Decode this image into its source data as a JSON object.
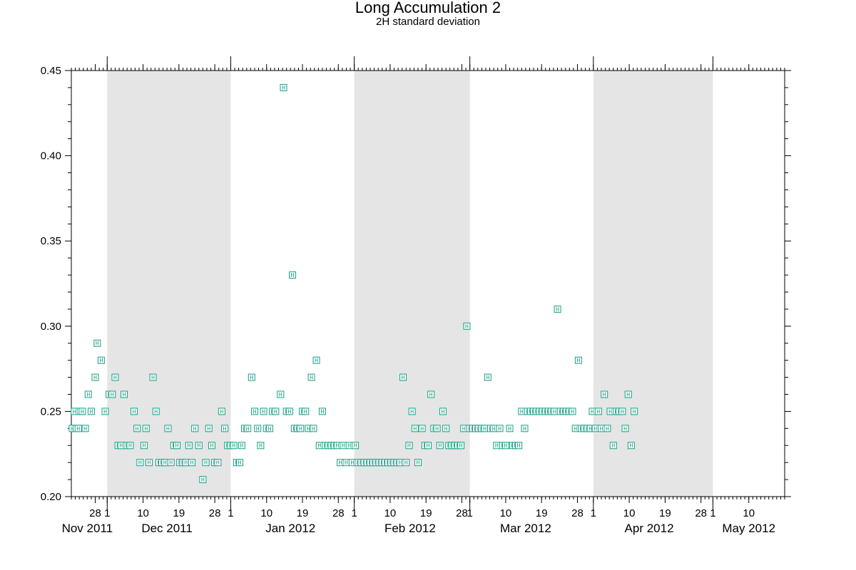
{
  "chart_data": {
    "type": "scatter",
    "title": "Long Accumulation 2",
    "subtitle": "2H standard deviation",
    "xlabel": "",
    "ylabel": "",
    "marker_symbol": "H",
    "marker_color": "#16a085",
    "shade_color": "#e5e5e5",
    "grid": false,
    "xlim": [
      "2011-11-22",
      "2012-05-19"
    ],
    "ylim": [
      0.2,
      0.45
    ],
    "y_ticks": [
      "0.20",
      "0.25",
      "0.30",
      "0.35",
      "0.40",
      "0.45"
    ],
    "shaded_months": [
      {
        "start": "2011-12-01",
        "end": "2012-01-01"
      },
      {
        "start": "2012-02-01",
        "end": "2012-03-01"
      },
      {
        "start": "2012-04-01",
        "end": "2012-05-01"
      }
    ],
    "x_day_ticks": [
      {
        "date": "2011-11-28",
        "label": "28"
      },
      {
        "date": "2011-12-01",
        "label": "1"
      },
      {
        "date": "2011-12-10",
        "label": "10"
      },
      {
        "date": "2011-12-19",
        "label": "19"
      },
      {
        "date": "2011-12-28",
        "label": "28"
      },
      {
        "date": "2012-01-01",
        "label": "1"
      },
      {
        "date": "2012-01-10",
        "label": "10"
      },
      {
        "date": "2012-01-19",
        "label": "19"
      },
      {
        "date": "2012-01-28",
        "label": "28"
      },
      {
        "date": "2012-02-01",
        "label": "1"
      },
      {
        "date": "2012-02-10",
        "label": "10"
      },
      {
        "date": "2012-02-19",
        "label": "19"
      },
      {
        "date": "2012-02-28",
        "label": "28"
      },
      {
        "date": "2012-03-01",
        "label": "1"
      },
      {
        "date": "2012-03-10",
        "label": "10"
      },
      {
        "date": "2012-03-19",
        "label": "19"
      },
      {
        "date": "2012-03-28",
        "label": "28"
      },
      {
        "date": "2012-04-01",
        "label": "1"
      },
      {
        "date": "2012-04-10",
        "label": "10"
      },
      {
        "date": "2012-04-19",
        "label": "19"
      },
      {
        "date": "2012-04-28",
        "label": "28"
      },
      {
        "date": "2012-05-01",
        "label": "1"
      },
      {
        "date": "2012-05-10",
        "label": "10"
      }
    ],
    "x_month_labels": [
      {
        "date": "2011-11-26",
        "label": "Nov 2011"
      },
      {
        "date": "2011-12-16",
        "label": "Dec 2011"
      },
      {
        "date": "2012-01-16",
        "label": "Jan 2012"
      },
      {
        "date": "2012-02-15",
        "label": "Feb 2012"
      },
      {
        "date": "2012-03-15",
        "label": "Mar 2012"
      },
      {
        "date": "2012-04-15",
        "label": "Apr 2012"
      },
      {
        "date": "2012-05-10",
        "label": "May 2012"
      }
    ],
    "series": [
      {
        "points": [
          {
            "x": "2011-11-22T06:00",
            "y": 0.24
          },
          {
            "x": "2011-11-22T18:00",
            "y": 0.25
          },
          {
            "x": "2011-11-23T06:00",
            "y": 0.24
          },
          {
            "x": "2011-11-23T18:00",
            "y": 0.24
          },
          {
            "x": "2011-11-24T06:00",
            "y": 0.25
          },
          {
            "x": "2011-11-24T18:00",
            "y": 0.25
          },
          {
            "x": "2011-11-25T12:00",
            "y": 0.24
          },
          {
            "x": "2011-11-26T06:00",
            "y": 0.26
          },
          {
            "x": "2011-11-27T00:00",
            "y": 0.25
          },
          {
            "x": "2011-11-28T00:00",
            "y": 0.27
          },
          {
            "x": "2011-11-28T12:00",
            "y": 0.29
          },
          {
            "x": "2011-11-29T12:00",
            "y": 0.28
          },
          {
            "x": "2011-11-30T12:00",
            "y": 0.25
          },
          {
            "x": "2011-12-01T12:00",
            "y": 0.26
          },
          {
            "x": "2011-12-02T06:00",
            "y": 0.26
          },
          {
            "x": "2011-12-03T00:00",
            "y": 0.27
          },
          {
            "x": "2011-12-03T18:00",
            "y": 0.23
          },
          {
            "x": "2011-12-04T12:00",
            "y": 0.23
          },
          {
            "x": "2011-12-05T06:00",
            "y": 0.26
          },
          {
            "x": "2011-12-06T00:00",
            "y": 0.23
          },
          {
            "x": "2011-12-06T18:00",
            "y": 0.23
          },
          {
            "x": "2011-12-07T18:00",
            "y": 0.25
          },
          {
            "x": "2011-12-08T12:00",
            "y": 0.24
          },
          {
            "x": "2011-12-09T06:00",
            "y": 0.22
          },
          {
            "x": "2011-12-10T06:00",
            "y": 0.23
          },
          {
            "x": "2011-12-10T18:00",
            "y": 0.24
          },
          {
            "x": "2011-12-11T12:00",
            "y": 0.22
          },
          {
            "x": "2011-12-12T12:00",
            "y": 0.27
          },
          {
            "x": "2011-12-13T06:00",
            "y": 0.25
          },
          {
            "x": "2011-12-14T00:00",
            "y": 0.22
          },
          {
            "x": "2011-12-14T18:00",
            "y": 0.22
          },
          {
            "x": "2011-12-15T12:00",
            "y": 0.22
          },
          {
            "x": "2011-12-16T06:00",
            "y": 0.24
          },
          {
            "x": "2011-12-17T00:00",
            "y": 0.22
          },
          {
            "x": "2011-12-17T18:00",
            "y": 0.23
          },
          {
            "x": "2011-12-18T12:00",
            "y": 0.23
          },
          {
            "x": "2011-12-19T06:00",
            "y": 0.22
          },
          {
            "x": "2011-12-20T00:00",
            "y": 0.22
          },
          {
            "x": "2011-12-20T18:00",
            "y": 0.22
          },
          {
            "x": "2011-12-21T12:00",
            "y": 0.23
          },
          {
            "x": "2011-12-22T06:00",
            "y": 0.22
          },
          {
            "x": "2011-12-23T00:00",
            "y": 0.24
          },
          {
            "x": "2011-12-24T00:00",
            "y": 0.23
          },
          {
            "x": "2011-12-25T00:00",
            "y": 0.21
          },
          {
            "x": "2011-12-25T18:00",
            "y": 0.22
          },
          {
            "x": "2011-12-26T12:00",
            "y": 0.24
          },
          {
            "x": "2011-12-27T06:00",
            "y": 0.23
          },
          {
            "x": "2011-12-28T00:00",
            "y": 0.22
          },
          {
            "x": "2011-12-28T18:00",
            "y": 0.22
          },
          {
            "x": "2011-12-29T18:00",
            "y": 0.25
          },
          {
            "x": "2011-12-30T12:00",
            "y": 0.24
          },
          {
            "x": "2011-12-31T06:00",
            "y": 0.23
          },
          {
            "x": "2012-01-01T00:00",
            "y": 0.23
          },
          {
            "x": "2012-01-01T18:00",
            "y": 0.23
          },
          {
            "x": "2012-01-02T12:00",
            "y": 0.22
          },
          {
            "x": "2012-01-03T06:00",
            "y": 0.22
          },
          {
            "x": "2012-01-03T18:00",
            "y": 0.23
          },
          {
            "x": "2012-01-04T12:00",
            "y": 0.24
          },
          {
            "x": "2012-01-05T06:00",
            "y": 0.24
          },
          {
            "x": "2012-01-06T06:00",
            "y": 0.27
          },
          {
            "x": "2012-01-07T00:00",
            "y": 0.25
          },
          {
            "x": "2012-01-07T18:00",
            "y": 0.24
          },
          {
            "x": "2012-01-08T12:00",
            "y": 0.23
          },
          {
            "x": "2012-01-09T06:00",
            "y": 0.25
          },
          {
            "x": "2012-01-10T00:00",
            "y": 0.24
          },
          {
            "x": "2012-01-10T18:00",
            "y": 0.24
          },
          {
            "x": "2012-01-11T12:00",
            "y": 0.25
          },
          {
            "x": "2012-01-12T06:00",
            "y": 0.25
          },
          {
            "x": "2012-01-13T12:00",
            "y": 0.26
          },
          {
            "x": "2012-01-14T06:00",
            "y": 0.44
          },
          {
            "x": "2012-01-15T00:00",
            "y": 0.25
          },
          {
            "x": "2012-01-15T18:00",
            "y": 0.25
          },
          {
            "x": "2012-01-16T12:00",
            "y": 0.33
          },
          {
            "x": "2012-01-17T00:00",
            "y": 0.24
          },
          {
            "x": "2012-01-17T18:00",
            "y": 0.24
          },
          {
            "x": "2012-01-18T12:00",
            "y": 0.24
          },
          {
            "x": "2012-01-19T00:00",
            "y": 0.25
          },
          {
            "x": "2012-01-19T18:00",
            "y": 0.25
          },
          {
            "x": "2012-01-20T12:00",
            "y": 0.24
          },
          {
            "x": "2012-01-21T06:00",
            "y": 0.27
          },
          {
            "x": "2012-01-21T18:00",
            "y": 0.24
          },
          {
            "x": "2012-01-22T12:00",
            "y": 0.28
          },
          {
            "x": "2012-01-23T06:00",
            "y": 0.23
          },
          {
            "x": "2012-01-24T00:00",
            "y": 0.25
          },
          {
            "x": "2012-01-24T18:00",
            "y": 0.23
          },
          {
            "x": "2012-01-25T12:00",
            "y": 0.23
          },
          {
            "x": "2012-01-26T06:00",
            "y": 0.23
          },
          {
            "x": "2012-01-27T00:00",
            "y": 0.23
          },
          {
            "x": "2012-01-27T18:00",
            "y": 0.23
          },
          {
            "x": "2012-01-28T12:00",
            "y": 0.22
          },
          {
            "x": "2012-01-29T06:00",
            "y": 0.23
          },
          {
            "x": "2012-01-30T00:00",
            "y": 0.22
          },
          {
            "x": "2012-01-30T18:00",
            "y": 0.23
          },
          {
            "x": "2012-01-31T12:00",
            "y": 0.22
          },
          {
            "x": "2012-02-01T06:00",
            "y": 0.23
          },
          {
            "x": "2012-02-02T00:00",
            "y": 0.22
          },
          {
            "x": "2012-02-02T18:00",
            "y": 0.22
          },
          {
            "x": "2012-02-03T12:00",
            "y": 0.22
          },
          {
            "x": "2012-02-04T06:00",
            "y": 0.22
          },
          {
            "x": "2012-02-05T00:00",
            "y": 0.22
          },
          {
            "x": "2012-02-05T18:00",
            "y": 0.22
          },
          {
            "x": "2012-02-06T12:00",
            "y": 0.22
          },
          {
            "x": "2012-02-07T06:00",
            "y": 0.22
          },
          {
            "x": "2012-02-08T00:00",
            "y": 0.22
          },
          {
            "x": "2012-02-08T18:00",
            "y": 0.22
          },
          {
            "x": "2012-02-09T12:00",
            "y": 0.22
          },
          {
            "x": "2012-02-10T06:00",
            "y": 0.22
          },
          {
            "x": "2012-02-11T00:00",
            "y": 0.22
          },
          {
            "x": "2012-02-11T18:00",
            "y": 0.22
          },
          {
            "x": "2012-02-12T12:00",
            "y": 0.22
          },
          {
            "x": "2012-02-13T06:00",
            "y": 0.27
          },
          {
            "x": "2012-02-14T00:00",
            "y": 0.22
          },
          {
            "x": "2012-02-14T18:00",
            "y": 0.23
          },
          {
            "x": "2012-02-15T12:00",
            "y": 0.25
          },
          {
            "x": "2012-02-16T06:00",
            "y": 0.24
          },
          {
            "x": "2012-02-17T00:00",
            "y": 0.22
          },
          {
            "x": "2012-02-18T00:00",
            "y": 0.24
          },
          {
            "x": "2012-02-18T18:00",
            "y": 0.23
          },
          {
            "x": "2012-02-19T12:00",
            "y": 0.23
          },
          {
            "x": "2012-02-20T06:00",
            "y": 0.26
          },
          {
            "x": "2012-02-21T00:00",
            "y": 0.24
          },
          {
            "x": "2012-02-21T18:00",
            "y": 0.24
          },
          {
            "x": "2012-02-22T12:00",
            "y": 0.23
          },
          {
            "x": "2012-02-23T06:00",
            "y": 0.25
          },
          {
            "x": "2012-02-24T00:00",
            "y": 0.24
          },
          {
            "x": "2012-02-24T18:00",
            "y": 0.23
          },
          {
            "x": "2012-02-25T12:00",
            "y": 0.23
          },
          {
            "x": "2012-02-26T06:00",
            "y": 0.23
          },
          {
            "x": "2012-02-27T00:00",
            "y": 0.23
          },
          {
            "x": "2012-02-27T18:00",
            "y": 0.23
          },
          {
            "x": "2012-02-28T12:00",
            "y": 0.24
          },
          {
            "x": "2012-02-29T06:00",
            "y": 0.3
          },
          {
            "x": "2012-03-01T00:00",
            "y": 0.24
          },
          {
            "x": "2012-03-01T18:00",
            "y": 0.24
          },
          {
            "x": "2012-03-02T12:00",
            "y": 0.24
          },
          {
            "x": "2012-03-03T06:00",
            "y": 0.24
          },
          {
            "x": "2012-03-04T00:00",
            "y": 0.24
          },
          {
            "x": "2012-03-04T18:00",
            "y": 0.24
          },
          {
            "x": "2012-03-05T12:00",
            "y": 0.27
          },
          {
            "x": "2012-03-06T06:00",
            "y": 0.24
          },
          {
            "x": "2012-03-07T00:00",
            "y": 0.24
          },
          {
            "x": "2012-03-07T18:00",
            "y": 0.23
          },
          {
            "x": "2012-03-08T12:00",
            "y": 0.24
          },
          {
            "x": "2012-03-09T06:00",
            "y": 0.23
          },
          {
            "x": "2012-03-10T00:00",
            "y": 0.23
          },
          {
            "x": "2012-03-11T00:00",
            "y": 0.24
          },
          {
            "x": "2012-03-11T18:00",
            "y": 0.23
          },
          {
            "x": "2012-03-12T12:00",
            "y": 0.23
          },
          {
            "x": "2012-03-13T06:00",
            "y": 0.23
          },
          {
            "x": "2012-03-14T00:00",
            "y": 0.25
          },
          {
            "x": "2012-03-14T18:00",
            "y": 0.24
          },
          {
            "x": "2012-03-15T12:00",
            "y": 0.25
          },
          {
            "x": "2012-03-16T06:00",
            "y": 0.25
          },
          {
            "x": "2012-03-17T00:00",
            "y": 0.25
          },
          {
            "x": "2012-03-17T18:00",
            "y": 0.25
          },
          {
            "x": "2012-03-18T12:00",
            "y": 0.25
          },
          {
            "x": "2012-03-19T06:00",
            "y": 0.25
          },
          {
            "x": "2012-03-20T00:00",
            "y": 0.25
          },
          {
            "x": "2012-03-20T18:00",
            "y": 0.25
          },
          {
            "x": "2012-03-21T12:00",
            "y": 0.25
          },
          {
            "x": "2012-03-22T06:00",
            "y": 0.25
          },
          {
            "x": "2012-03-23T00:00",
            "y": 0.31
          },
          {
            "x": "2012-03-23T18:00",
            "y": 0.25
          },
          {
            "x": "2012-03-24T12:00",
            "y": 0.25
          },
          {
            "x": "2012-03-25T06:00",
            "y": 0.25
          },
          {
            "x": "2012-03-26T00:00",
            "y": 0.25
          },
          {
            "x": "2012-03-26T18:00",
            "y": 0.25
          },
          {
            "x": "2012-03-27T12:00",
            "y": 0.24
          },
          {
            "x": "2012-03-28T06:00",
            "y": 0.28
          },
          {
            "x": "2012-03-29T00:00",
            "y": 0.24
          },
          {
            "x": "2012-03-29T18:00",
            "y": 0.24
          },
          {
            "x": "2012-03-30T12:00",
            "y": 0.24
          },
          {
            "x": "2012-03-31T06:00",
            "y": 0.24
          },
          {
            "x": "2012-03-31T18:00",
            "y": 0.25
          },
          {
            "x": "2012-04-01T12:00",
            "y": 0.24
          },
          {
            "x": "2012-04-02T06:00",
            "y": 0.25
          },
          {
            "x": "2012-04-03T00:00",
            "y": 0.24
          },
          {
            "x": "2012-04-03T18:00",
            "y": 0.26
          },
          {
            "x": "2012-04-04T12:00",
            "y": 0.24
          },
          {
            "x": "2012-04-05T06:00",
            "y": 0.25
          },
          {
            "x": "2012-04-06T00:00",
            "y": 0.23
          },
          {
            "x": "2012-04-06T18:00",
            "y": 0.25
          },
          {
            "x": "2012-04-07T12:00",
            "y": 0.25
          },
          {
            "x": "2012-04-08T06:00",
            "y": 0.25
          },
          {
            "x": "2012-04-09T00:00",
            "y": 0.24
          },
          {
            "x": "2012-04-09T18:00",
            "y": 0.26
          },
          {
            "x": "2012-04-10T12:00",
            "y": 0.23
          },
          {
            "x": "2012-04-11T06:00",
            "y": 0.25
          }
        ]
      }
    ]
  }
}
